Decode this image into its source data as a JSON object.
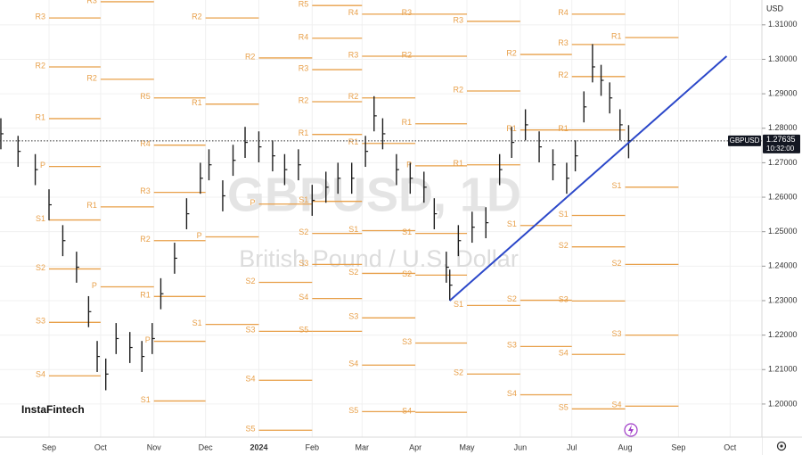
{
  "chart_data": {
    "type": "ohlc",
    "watermark_title": "GBPUSD, 1D",
    "watermark_subtitle": "British Pound / U.S. Dollar",
    "currency": "USD",
    "symbol": "GBPUSD",
    "last_price": 1.27635,
    "time": "10:32:00",
    "brand": "InstaFintech",
    "color": "#1e1e1e",
    "x": [
      -28,
      -18,
      -8,
      0,
      8,
      16,
      23,
      28,
      33,
      39,
      47,
      54,
      60,
      65,
      73,
      80,
      88,
      93,
      101,
      107,
      114,
      122,
      130,
      137,
      145,
      153,
      161,
      168,
      176,
      184,
      189,
      194,
      202,
      210,
      218,
      224,
      231,
      233,
      238,
      246,
      254,
      262,
      269,
      277,
      285,
      293,
      301,
      306,
      311,
      316,
      321,
      326,
      332,
      337
    ],
    "high": [
      1.2829,
      1.2778,
      1.2725,
      1.2623,
      1.2519,
      1.2442,
      1.2313,
      1.2183,
      1.2132,
      1.2235,
      1.2209,
      1.2183,
      1.2235,
      1.2365,
      1.2468,
      1.2597,
      1.27,
      1.2739,
      1.2649,
      1.2752,
      1.2804,
      1.2791,
      1.2765,
      1.2725,
      1.2739,
      1.2636,
      1.2674,
      1.27,
      1.27,
      1.2778,
      1.2893,
      1.2829,
      1.2725,
      1.27,
      1.2674,
      1.2597,
      1.2442,
      1.239,
      1.2519,
      1.2558,
      1.2571,
      1.2725,
      1.2804,
      1.2855,
      1.2791,
      1.2739,
      1.27,
      1.2765,
      1.2907,
      1.3044,
      1.2984,
      1.2933,
      1.2855,
      1.2809
    ],
    "low": [
      1.2739,
      1.2688,
      1.2635,
      1.2533,
      1.2429,
      1.2352,
      1.2223,
      1.2093,
      1.204,
      1.2145,
      1.2119,
      1.2093,
      1.2145,
      1.2275,
      1.2378,
      1.2507,
      1.261,
      1.2649,
      1.2559,
      1.2662,
      1.2714,
      1.2701,
      1.2675,
      1.2635,
      1.2649,
      1.2546,
      1.2584,
      1.261,
      1.261,
      1.2688,
      1.2791,
      1.2739,
      1.2635,
      1.261,
      1.2584,
      1.2507,
      1.2352,
      1.23,
      1.2429,
      1.2468,
      1.2481,
      1.2635,
      1.2714,
      1.2765,
      1.2701,
      1.2649,
      1.261,
      1.2675,
      1.2817,
      1.2933,
      1.2894,
      1.2843,
      1.2765,
      1.2713
    ],
    "close": [
      1.2784,
      1.2733,
      1.268,
      1.2578,
      1.2474,
      1.2397,
      1.2268,
      1.2138,
      1.2087,
      1.219,
      1.2164,
      1.2138,
      1.219,
      1.232,
      1.2423,
      1.2552,
      1.2655,
      1.2694,
      1.2604,
      1.2707,
      1.2759,
      1.2746,
      1.272,
      1.268,
      1.2694,
      1.2591,
      1.2629,
      1.2655,
      1.2655,
      1.2733,
      1.2836,
      1.2784,
      1.268,
      1.2655,
      1.2629,
      1.2552,
      1.2397,
      1.2345,
      1.2474,
      1.2513,
      1.2526,
      1.268,
      1.2759,
      1.281,
      1.2746,
      1.2694,
      1.2655,
      1.272,
      1.2862,
      1.2978,
      1.2939,
      1.2888,
      1.281,
      1.2764
    ],
    "xlim": [
      -28.5,
      414.5
    ],
    "ylim": [
      1.1904,
      1.3172
    ],
    "xticks": [
      {
        "value": 0,
        "label": "Sep"
      },
      {
        "value": 30,
        "label": "Oct"
      },
      {
        "value": 61,
        "label": "Nov"
      },
      {
        "value": 91,
        "label": "Dec"
      },
      {
        "value": 122,
        "label": "2024"
      },
      {
        "value": 153,
        "label": "Feb"
      },
      {
        "value": 182,
        "label": "Mar"
      },
      {
        "value": 213,
        "label": "Apr"
      },
      {
        "value": 243,
        "label": "May"
      },
      {
        "value": 274,
        "label": "Jun"
      },
      {
        "value": 304,
        "label": "Jul"
      },
      {
        "value": 335,
        "label": "Aug"
      },
      {
        "value": 366,
        "label": "Sep"
      },
      {
        "value": 396,
        "label": "Oct"
      }
    ],
    "yticks": [
      {
        "value": 1.31,
        "label": "1.31000"
      },
      {
        "value": 1.3,
        "label": "1.30000"
      },
      {
        "value": 1.29,
        "label": "1.29000"
      },
      {
        "value": 1.28,
        "label": "1.28000"
      },
      {
        "value": 1.27,
        "label": "1.27000"
      },
      {
        "value": 1.26,
        "label": "1.26000"
      },
      {
        "value": 1.25,
        "label": "1.25000"
      },
      {
        "value": 1.24,
        "label": "1.24000"
      },
      {
        "value": 1.23,
        "label": "1.23000"
      },
      {
        "value": 1.22,
        "label": "1.22000"
      },
      {
        "value": 1.21,
        "label": "1.21000"
      },
      {
        "value": 1.2,
        "label": "1.20000"
      }
    ],
    "grid": true,
    "trendline": {
      "x": [
        233,
        394
      ],
      "values": [
        1.23,
        1.3009
      ],
      "color": "#2b47c9"
    },
    "pivot_color": "#e8a04a",
    "pivots": [
      {
        "start": 0,
        "end": 30,
        "labels": [
          "R3",
          "R2",
          "R1",
          "P",
          "S1",
          "S2",
          "S3",
          "S4"
        ],
        "values": [
          1.312,
          1.2978,
          1.2828,
          1.2689,
          1.2534,
          1.2392,
          1.2237,
          1.2082
        ]
      },
      {
        "start": 30,
        "end": 61,
        "labels": [
          "R3",
          "R2",
          "R1",
          "P"
        ],
        "values": [
          1.3167,
          1.2942,
          1.2572,
          1.234
        ]
      },
      {
        "start": 61,
        "end": 91,
        "labels": [
          "R5",
          "R4",
          "R3",
          "R2",
          "R1",
          "P",
          "S1"
        ],
        "values": [
          1.2888,
          1.2751,
          1.2614,
          1.2474,
          1.2312,
          1.2182,
          1.2009
        ]
      },
      {
        "start": 91,
        "end": 122,
        "labels": [
          "R2",
          "R1",
          "P",
          "S1"
        ],
        "values": [
          1.312,
          1.287,
          1.2485,
          1.2231
        ]
      },
      {
        "start": 122,
        "end": 153,
        "labels": [
          "R2",
          "P",
          "S2",
          "S3",
          "S4",
          "S5"
        ],
        "values": [
          1.3004,
          1.258,
          1.2353,
          1.2211,
          1.2069,
          1.1924
        ]
      },
      {
        "start": 153,
        "end": 182,
        "labels": [
          "R5",
          "R4",
          "R3",
          "R2",
          "R1",
          "S1",
          "S2",
          "S3",
          "S4",
          "S5"
        ],
        "values": [
          1.3156,
          1.3061,
          1.297,
          1.2877,
          1.2782,
          1.2588,
          1.2495,
          1.2405,
          1.2306,
          1.2211
        ]
      },
      {
        "start": 182,
        "end": 213,
        "labels": [
          "R4",
          "R3",
          "R2",
          "R1",
          "S1",
          "S2",
          "S3",
          "S4",
          "S5"
        ],
        "values": [
          1.3131,
          1.3009,
          1.2888,
          1.2756,
          1.2503,
          1.2379,
          1.225,
          1.2113,
          1.1978
        ]
      },
      {
        "start": 213,
        "end": 243,
        "labels": [
          "R3",
          "R2",
          "R1",
          "P",
          "S1",
          "S2",
          "S3",
          "S4"
        ],
        "values": [
          1.3131,
          1.3009,
          1.2813,
          1.2691,
          1.2495,
          1.2374,
          1.2177,
          1.1976
        ]
      },
      {
        "start": 243,
        "end": 274,
        "labels": [
          "R3",
          "R2",
          "R1",
          "S1",
          "S2"
        ],
        "values": [
          1.311,
          1.2908,
          1.2694,
          1.2286,
          1.2087
        ]
      },
      {
        "start": 274,
        "end": 304,
        "labels": [
          "R2",
          "R1",
          "S1",
          "S2",
          "S3",
          "S4"
        ],
        "values": [
          1.3014,
          1.2795,
          1.2518,
          1.2301,
          1.2167,
          1.2027
        ]
      },
      {
        "start": 304,
        "end": 335,
        "labels": [
          "R4",
          "R3",
          "R2",
          "R1",
          "S1",
          "S2",
          "S3",
          "S4",
          "S5"
        ],
        "values": [
          1.3131,
          1.3043,
          1.295,
          1.2795,
          1.2547,
          1.2456,
          1.2299,
          1.2144,
          1.1986
        ]
      },
      {
        "start": 335,
        "end": 366,
        "labels": [
          "R1",
          "S1",
          "S2",
          "S3",
          "S4"
        ],
        "values": [
          1.3063,
          1.2629,
          1.2405,
          1.22,
          1.1994
        ]
      }
    ]
  }
}
